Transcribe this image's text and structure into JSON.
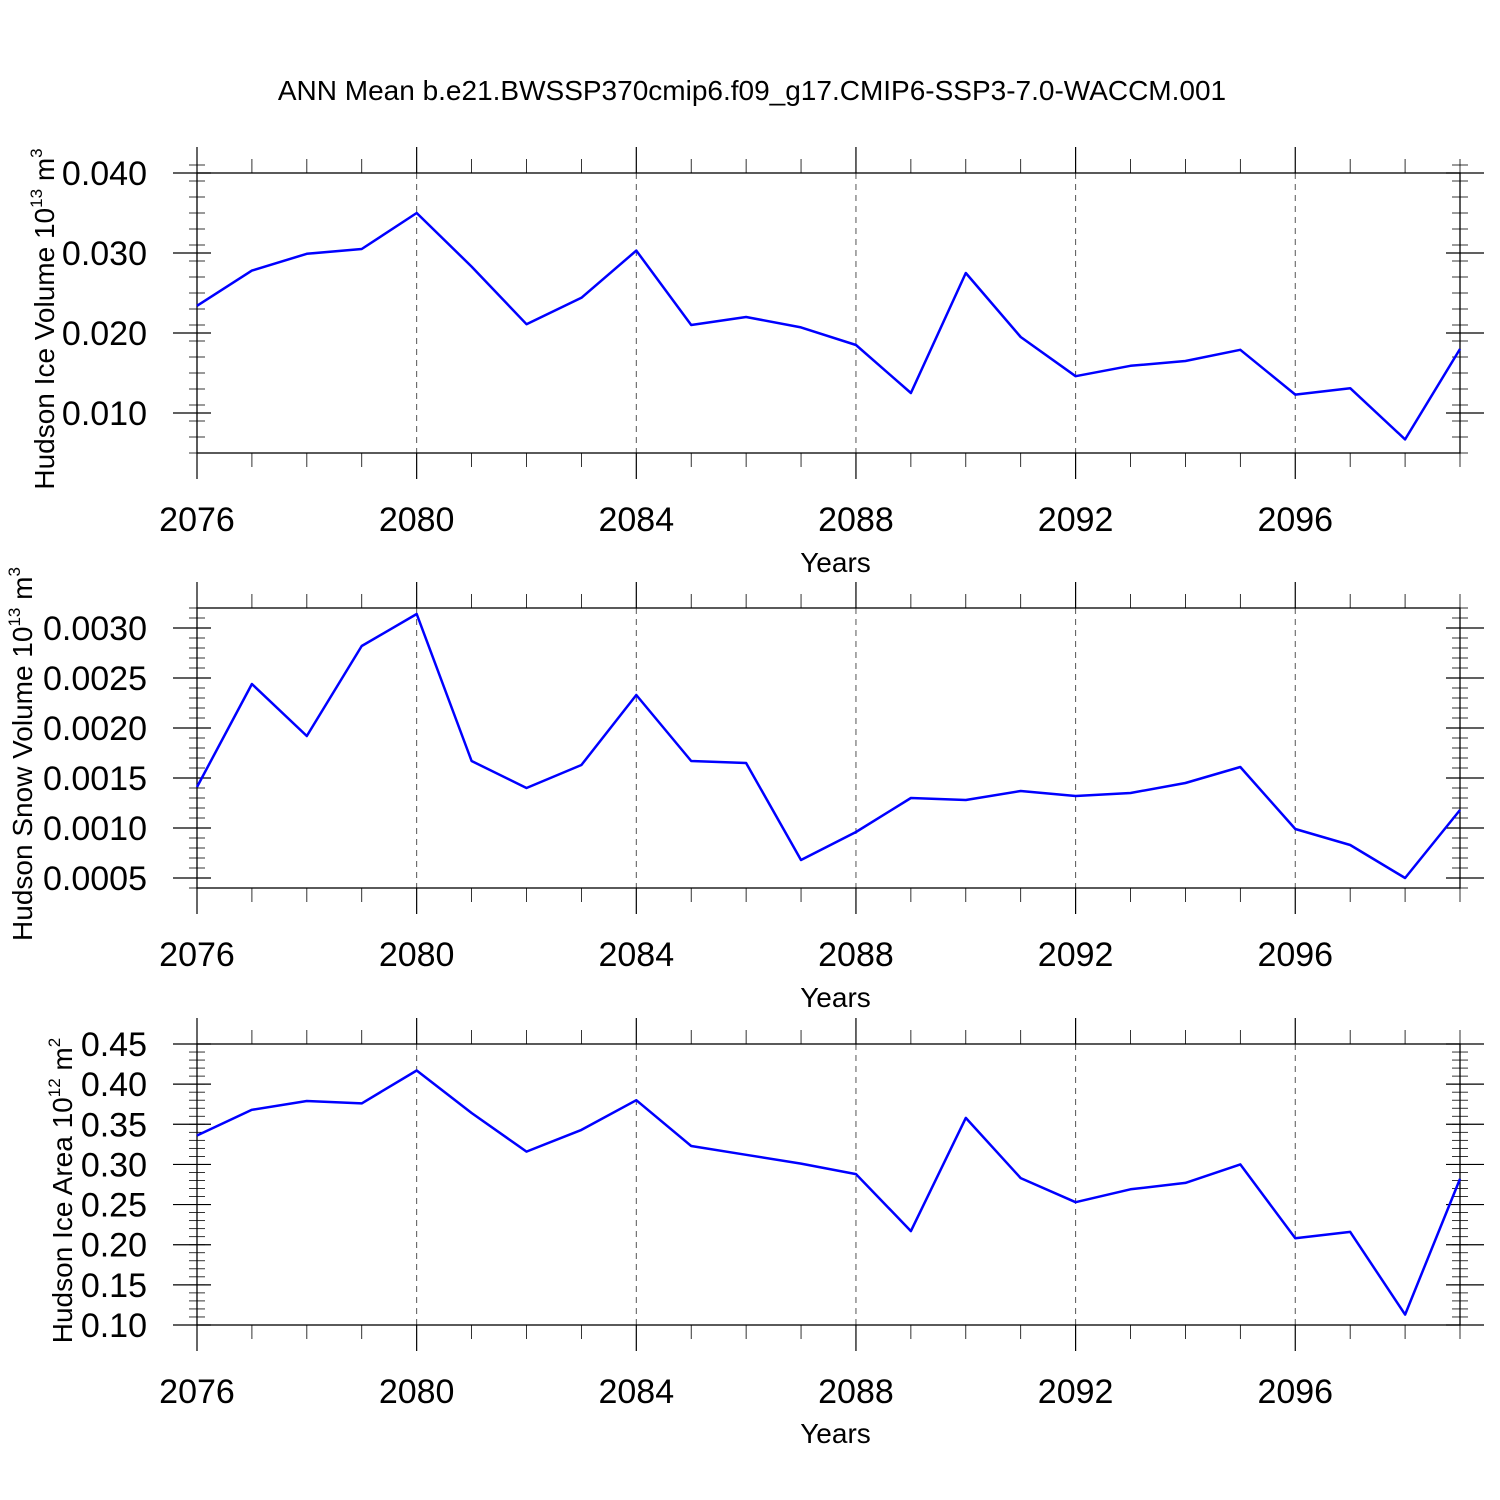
{
  "figure_title": "ANN Mean b.e21.BWSSP370cmip6.f09_g17.CMIP6-SSP3-7.0-WACCM.001",
  "colors": {
    "line": "#0000ff",
    "axis": "#000000",
    "grid": "#555555"
  },
  "chart_data": [
    {
      "type": "line",
      "ylabel": "Hudson Ice Volume",
      "unit_base": "10",
      "unit_exp": "13",
      "unit_suffix": " m",
      "unit_suffix_exp": "3",
      "xlabel": "Years",
      "xlim": [
        2076,
        2099
      ],
      "ylim": [
        0.005,
        0.04
      ],
      "xticks": [
        2076,
        2080,
        2084,
        2088,
        2092,
        2096
      ],
      "xtick_labels": [
        "2076",
        "2080",
        "2084",
        "2088",
        "2092",
        "2096"
      ],
      "yticks": [
        0.01,
        0.02,
        0.03,
        0.04
      ],
      "ytick_labels": [
        "0.010",
        "0.020",
        "0.030",
        "0.040"
      ],
      "y_minor_step": 0.002,
      "grid_x": [
        2080,
        2084,
        2088,
        2092,
        2096
      ],
      "x": [
        2076,
        2077,
        2078,
        2079,
        2080,
        2081,
        2082,
        2083,
        2084,
        2085,
        2086,
        2087,
        2088,
        2089,
        2090,
        2091,
        2092,
        2093,
        2094,
        2095,
        2096,
        2097,
        2098,
        2099
      ],
      "values": [
        0.0234,
        0.0278,
        0.0299,
        0.0305,
        0.035,
        0.0283,
        0.0211,
        0.0244,
        0.0303,
        0.021,
        0.022,
        0.0207,
        0.0185,
        0.0125,
        0.0275,
        0.0195,
        0.0146,
        0.0159,
        0.0165,
        0.0179,
        0.0123,
        0.0131,
        0.0067,
        0.018
      ]
    },
    {
      "type": "line",
      "ylabel": "Hudson Snow Volume",
      "unit_base": "10",
      "unit_exp": "13",
      "unit_suffix": " m",
      "unit_suffix_exp": "3",
      "xlabel": "Years",
      "xlim": [
        2076,
        2099
      ],
      "ylim": [
        0.0004,
        0.0032
      ],
      "xticks": [
        2076,
        2080,
        2084,
        2088,
        2092,
        2096
      ],
      "xtick_labels": [
        "2076",
        "2080",
        "2084",
        "2088",
        "2092",
        "2096"
      ],
      "yticks": [
        0.0005,
        0.001,
        0.0015,
        0.002,
        0.0025,
        0.003
      ],
      "ytick_labels": [
        "0.0005",
        "0.0010",
        "0.0015",
        "0.0020",
        "0.0025",
        "0.0030"
      ],
      "y_minor_step": 0.0001,
      "grid_x": [
        2080,
        2084,
        2088,
        2092,
        2096
      ],
      "x": [
        2076,
        2077,
        2078,
        2079,
        2080,
        2081,
        2082,
        2083,
        2084,
        2085,
        2086,
        2087,
        2088,
        2089,
        2090,
        2091,
        2092,
        2093,
        2094,
        2095,
        2096,
        2097,
        2098,
        2099
      ],
      "values": [
        0.00141,
        0.00244,
        0.00192,
        0.00282,
        0.00314,
        0.00167,
        0.0014,
        0.00163,
        0.00233,
        0.00167,
        0.00165,
        0.00068,
        0.00096,
        0.0013,
        0.00128,
        0.00137,
        0.00132,
        0.00135,
        0.00145,
        0.00161,
        0.00099,
        0.00083,
        0.0005,
        0.00118
      ]
    },
    {
      "type": "line",
      "ylabel": "Hudson Ice Area",
      "unit_base": "10",
      "unit_exp": "12",
      "unit_suffix": " m",
      "unit_suffix_exp": "2",
      "xlabel": "Years",
      "xlim": [
        2076,
        2099
      ],
      "ylim": [
        0.1,
        0.45
      ],
      "xticks": [
        2076,
        2080,
        2084,
        2088,
        2092,
        2096
      ],
      "xtick_labels": [
        "2076",
        "2080",
        "2084",
        "2088",
        "2092",
        "2096"
      ],
      "yticks": [
        0.1,
        0.15,
        0.2,
        0.25,
        0.3,
        0.35,
        0.4,
        0.45
      ],
      "ytick_labels": [
        "0.10",
        "0.15",
        "0.20",
        "0.25",
        "0.30",
        "0.35",
        "0.40",
        "0.45"
      ],
      "y_minor_step": 0.01,
      "grid_x": [
        2080,
        2084,
        2088,
        2092,
        2096
      ],
      "x": [
        2076,
        2077,
        2078,
        2079,
        2080,
        2081,
        2082,
        2083,
        2084,
        2085,
        2086,
        2087,
        2088,
        2089,
        2090,
        2091,
        2092,
        2093,
        2094,
        2095,
        2096,
        2097,
        2098,
        2099
      ],
      "values": [
        0.336,
        0.368,
        0.379,
        0.376,
        0.417,
        0.364,
        0.316,
        0.343,
        0.38,
        0.323,
        0.312,
        0.301,
        0.288,
        0.217,
        0.358,
        0.283,
        0.253,
        0.269,
        0.277,
        0.3,
        0.208,
        0.216,
        0.113,
        0.282
      ]
    }
  ]
}
